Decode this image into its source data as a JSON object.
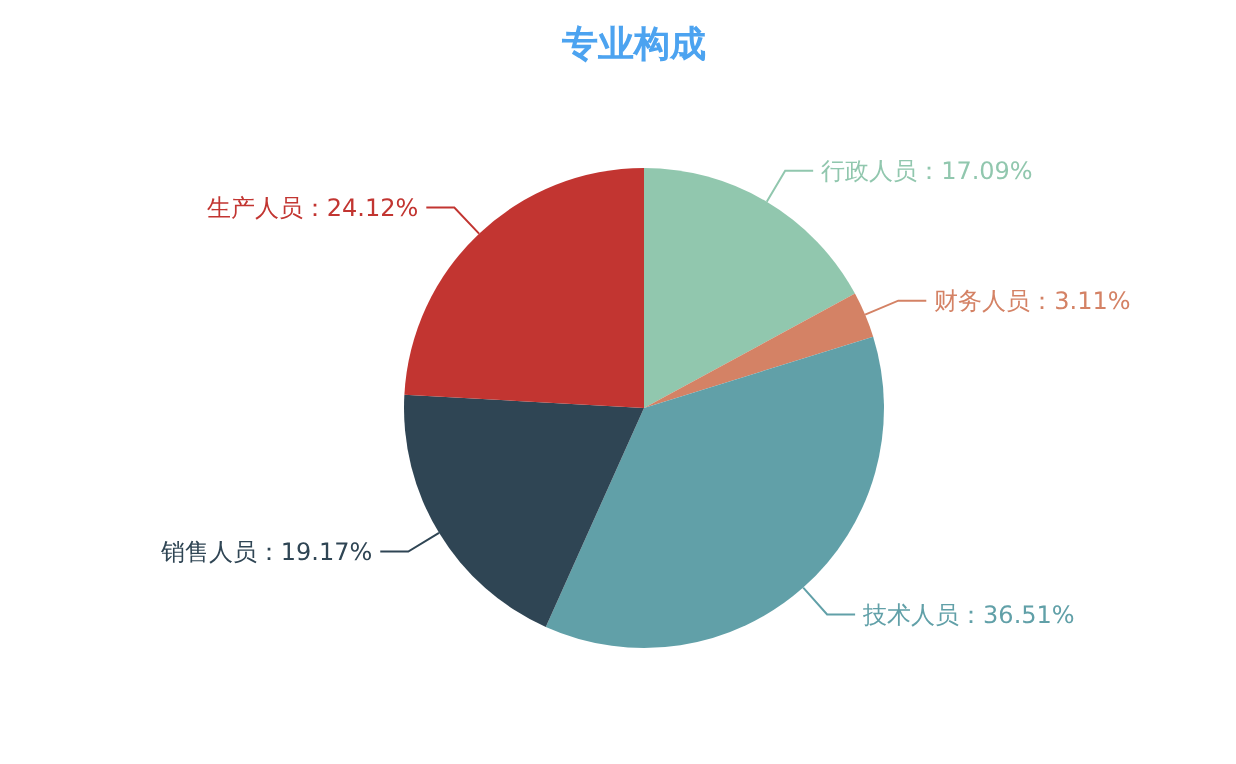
{
  "chart_data": {
    "type": "pie",
    "title": "专业构成",
    "categories": [
      "行政人员",
      "财务人员",
      "技术人员",
      "销售人员",
      "生产人员"
    ],
    "values": [
      17.09,
      3.11,
      36.51,
      19.17,
      24.12
    ],
    "value_labels": [
      "：17.09%",
      "：3.11%",
      "：36.51%",
      "：19.17%",
      "：24.12%"
    ],
    "colors": [
      "#91c7ae",
      "#d48265",
      "#61a0a8",
      "#2f4554",
      "#c23531"
    ]
  }
}
